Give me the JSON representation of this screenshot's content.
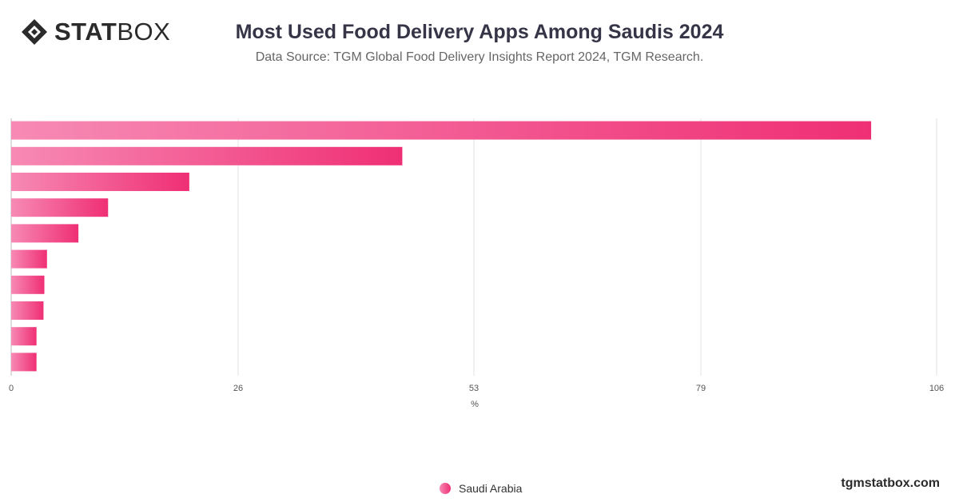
{
  "header": {
    "logo_bold": "STAT",
    "logo_light": "BOX",
    "title": "Most Used Food Delivery Apps Among Saudis 2024",
    "subtitle": "Data Source: TGM Global Food Delivery Insights Report 2024, TGM Research."
  },
  "legend": {
    "label": "Saudi Arabia"
  },
  "footer": {
    "site": "tgmstatbox.com"
  },
  "colors": {
    "bar_start": "#f78ab4",
    "bar_end": "#ef2f74",
    "grid": "#e2e2e2",
    "text": "#333333"
  },
  "chart_data": {
    "type": "bar",
    "orientation": "horizontal",
    "categories": [
      "",
      "",
      "",
      "",
      "",
      "",
      "",
      "",
      "",
      ""
    ],
    "series": [
      {
        "name": "Saudi Arabia",
        "values": [
          98.5,
          44.8,
          20.4,
          11.1,
          7.7,
          4.1,
          3.8,
          3.7,
          2.9,
          2.9
        ]
      }
    ],
    "xlabel": "%",
    "ylabel": "",
    "xlim": [
      0,
      106
    ],
    "xticks": [
      "0",
      "26",
      "53",
      "79",
      "106"
    ],
    "grid": true,
    "legend_position": "bottom"
  }
}
